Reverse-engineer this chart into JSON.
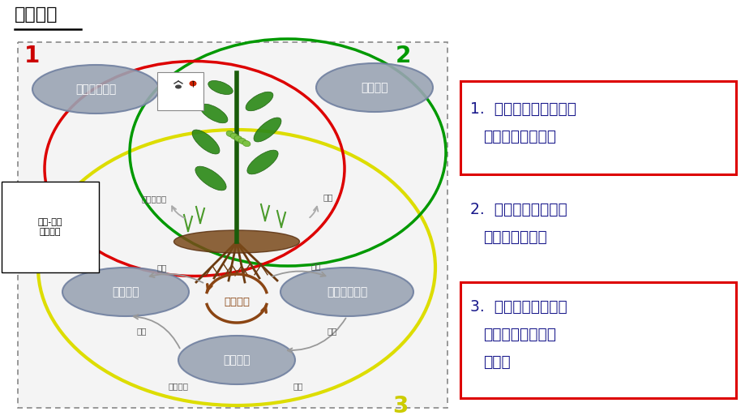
{
  "title": "研究方向",
  "bg_color": "#ffffff",
  "text_dark_blue": "#1a1a8c",
  "text_black": "#000000",
  "text_red": "#cc0000",
  "text_green": "#009900",
  "text_yellow": "#cccc00",
  "red_color": "#dd0000",
  "green_color": "#009900",
  "yellow_color": "#dddd00",
  "brown_color": "#8B4513",
  "gray_fill": "#9aa4b4",
  "gray_edge": "#7080a0",
  "arrow_color": "#aaaaaa",
  "label_1": "昆虫群落动态",
  "label_2": "环境因素",
  "label_3": "土壤结构",
  "label_4": "碳和养分循环",
  "label_5": "土壤生物",
  "label_center": "微观尺度",
  "label_bio_div": "生态多样性",
  "label_yield": "产量",
  "label_compose": "构成",
  "label_input": "输入",
  "label_decomp": "分解",
  "label_output": "输出",
  "label_community": "群落结构",
  "label_function": "功能",
  "label_abovebelow": "地上-地下\n互作关系",
  "num1": "1",
  "num2": "2",
  "num3": "3",
  "box1_l1": "1.  植物挥发物介导地上",
  "box1_l2": "    多层营养关系互作",
  "box2_l1": "2.  环境因素对于植物",
  "box2_l2": "    昆虫互作的影响",
  "box3_l1": "3.  植物土壤反馈机制",
  "box3_l2": "    对微生物群落构成",
  "box3_l3": "    的影响"
}
